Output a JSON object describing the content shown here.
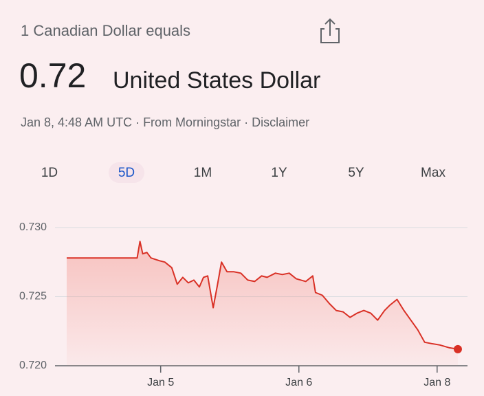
{
  "header": {
    "subtitle": "1 Canadian Dollar equals",
    "rate": "0.72",
    "currency": "United States Dollar",
    "meta": "Jan 8, 4:48 AM UTC · From Morningstar · Disclaimer"
  },
  "tabs": [
    "1D",
    "5D",
    "1M",
    "1Y",
    "5Y",
    "Max"
  ],
  "selected_tab": 1,
  "chart_data": {
    "type": "line",
    "color": "#d93025",
    "x": [
      0.32,
      0.83,
      0.85,
      0.87,
      0.9,
      0.93,
      0.99,
      1.03,
      1.08,
      1.12,
      1.16,
      1.2,
      1.24,
      1.28,
      1.31,
      1.34,
      1.38,
      1.41,
      1.44,
      1.48,
      1.53,
      1.58,
      1.63,
      1.68,
      1.73,
      1.77,
      1.83,
      1.88,
      1.93,
      1.98,
      2.05,
      2.1,
      2.12,
      2.17,
      2.22,
      2.27,
      2.32,
      2.37,
      2.42,
      2.47,
      2.52,
      2.57,
      2.62,
      2.66,
      2.71,
      2.76,
      2.81,
      2.86,
      2.91,
      2.96,
      3.02,
      3.09,
      3.15
    ],
    "values": [
      0.7278,
      0.7278,
      0.729,
      0.7281,
      0.7282,
      0.7278,
      0.7276,
      0.7275,
      0.7271,
      0.7259,
      0.7264,
      0.726,
      0.7262,
      0.7257,
      0.7264,
      0.7265,
      0.7242,
      0.7258,
      0.7275,
      0.7268,
      0.7268,
      0.7267,
      0.7262,
      0.7261,
      0.7265,
      0.7264,
      0.7267,
      0.7266,
      0.7267,
      0.7263,
      0.7261,
      0.7265,
      0.7253,
      0.7251,
      0.7245,
      0.724,
      0.7239,
      0.7235,
      0.7238,
      0.724,
      0.7238,
      0.7233,
      0.724,
      0.7244,
      0.7248,
      0.724,
      0.7233,
      0.7226,
      0.7217,
      0.7216,
      0.7215,
      0.7213,
      0.7212
    ],
    "xlim": [
      0.32,
      3.2
    ],
    "xticks": [
      {
        "value": 1,
        "label": "Jan 5"
      },
      {
        "value": 2,
        "label": "Jan 6"
      },
      {
        "value": 3,
        "label": "Jan 8"
      }
    ],
    "ylim": [
      0.72,
      0.73
    ],
    "yticks": [
      {
        "value": 0.73,
        "label": "0.730"
      },
      0.725,
      {
        "value": 0.72,
        "label": "0.720"
      }
    ],
    "grid": true
  }
}
